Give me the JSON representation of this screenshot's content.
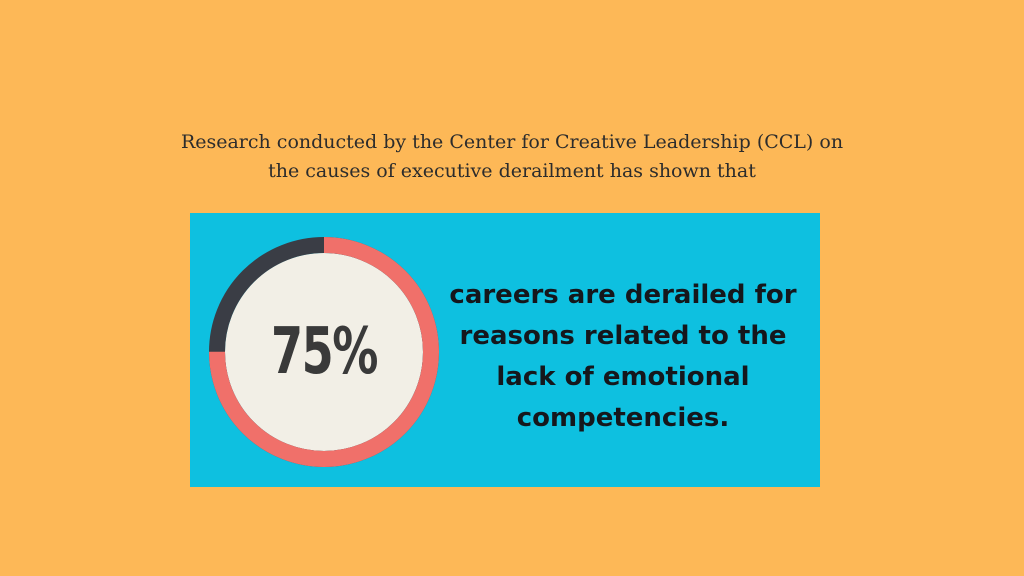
{
  "intro": {
    "lines": [
      "Research conducted by the Center for Creative Leadership (CCL) on",
      "the causes of executive derailment has shown that"
    ]
  },
  "stat": {
    "value_label": "75%",
    "fraction": 0.75,
    "colors": {
      "filled_ring": "#F0706A",
      "remaining_ring": "#3A3D45",
      "inner_circle": "#F2EFE6",
      "panel": "#0EC0E0",
      "background": "#FDB857"
    }
  },
  "statement": {
    "lines": [
      "careers are derailed for",
      "reasons related to the",
      "lack of emotional",
      "competencies."
    ]
  }
}
